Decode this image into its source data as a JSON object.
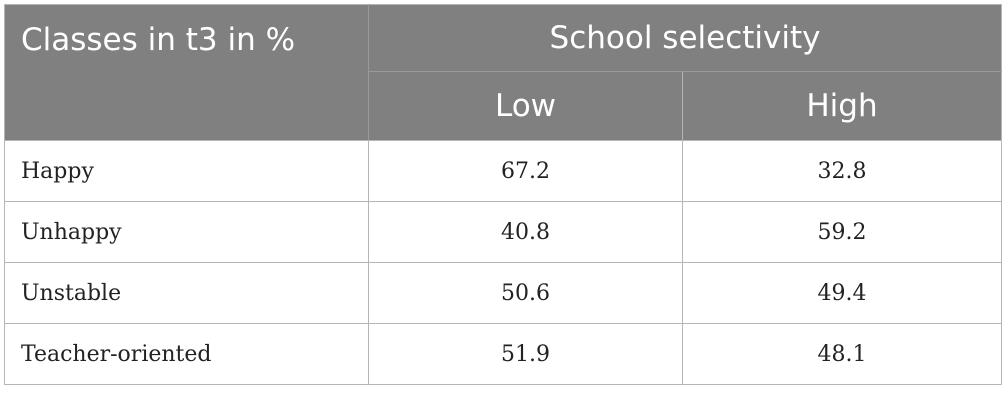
{
  "table": {
    "header": {
      "row_label": "Classes in t3 in %",
      "group_label": "School selectivity",
      "columns": [
        "Low",
        "High"
      ]
    },
    "rows": [
      {
        "label": "Happy",
        "low": "67.2",
        "high": "32.8"
      },
      {
        "label": "Unhappy",
        "low": "40.8",
        "high": "59.2"
      },
      {
        "label": "Unstable",
        "low": "50.6",
        "high": "49.4"
      },
      {
        "label": "Teacher-oriented",
        "low": "51.9",
        "high": "48.1"
      }
    ]
  },
  "colors": {
    "header_bg": "#808080",
    "header_text": "#ffffff",
    "border": "#b5b5b5",
    "body_text": "#222222"
  }
}
